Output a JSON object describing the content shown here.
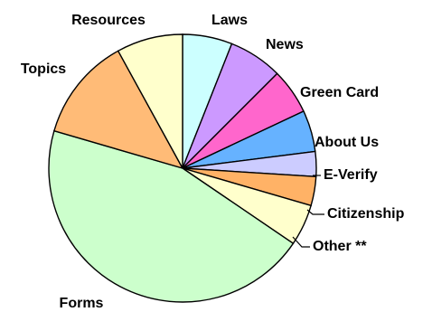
{
  "chart_data": {
    "type": "pie",
    "title": "",
    "start_angle_deg": 90,
    "direction": "clockwise",
    "slices": [
      {
        "label": "Laws",
        "value": 6.0,
        "color": "#ccffff"
      },
      {
        "label": "News",
        "value": 6.5,
        "color": "#cc99ff"
      },
      {
        "label": "Green Card",
        "value": 5.5,
        "color": "#ff66cc"
      },
      {
        "label": "About Us",
        "value": 5.0,
        "color": "#66b2ff"
      },
      {
        "label": "E-Verify",
        "value": 3.0,
        "color": "#ccccff"
      },
      {
        "label": "Citizenship",
        "value": 3.5,
        "color": "#ffb266"
      },
      {
        "label": "Other **",
        "value": 5.0,
        "color": "#ffffcc"
      },
      {
        "label": "Forms",
        "value": 45.0,
        "color": "#ccffcc"
      },
      {
        "label": "Topics",
        "value": 12.5,
        "color": "#ffbb77"
      },
      {
        "label": "Resources",
        "value": 8.0,
        "color": "#ffffcc"
      }
    ]
  }
}
